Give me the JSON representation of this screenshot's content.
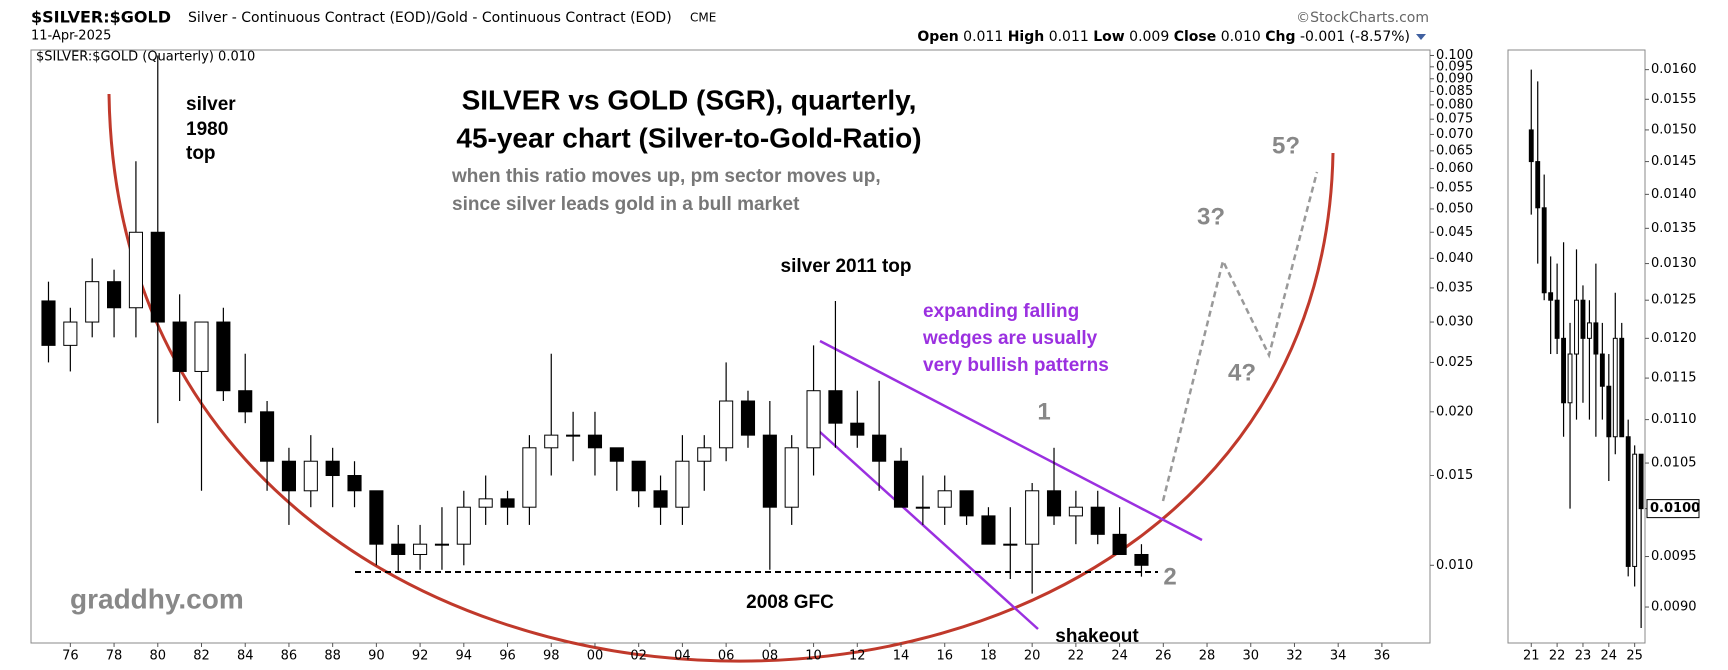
{
  "header": {
    "symbol": "$SILVER:$GOLD",
    "description": "Silver - Continuous Contract (EOD)/Gold - Continuous Contract (EOD)",
    "exchange": "CME",
    "source": "©StockCharts.com",
    "date": "11-Apr-2025",
    "quote": [
      {
        "label": "Open",
        "value": "0.011"
      },
      {
        "label": "High",
        "value": "0.011"
      },
      {
        "label": "Low",
        "value": "0.009"
      },
      {
        "label": "Close",
        "value": "0.010"
      },
      {
        "label": "Chg",
        "value": "-0.001 (-8.57%)"
      }
    ]
  },
  "chart_data": [
    {
      "type": "candlestick",
      "legend_label": "$SILVER:$GOLD (Quarterly) 0.010",
      "title": [
        "SILVER vs GOLD (SGR), quarterly,",
        "45-year chart (Silver-to-Gold-Ratio)"
      ],
      "subtitle": [
        "when this ratio moves up, pm sector moves up,",
        "since silver leads gold in a bull market"
      ],
      "annotations": {
        "silver_1980": [
          "silver",
          "1980",
          "top"
        ],
        "silver_2011": "silver 2011 top",
        "wedge": [
          "expanding falling",
          "wedges are usually",
          "very bullish patterns"
        ],
        "wave1": "1",
        "wave2": "2",
        "wave3": "3?",
        "wave4": "4?",
        "wave5": "5?",
        "site": "graddhy.com",
        "gfc": "2008 GFC",
        "shakeout": "shakeout"
      },
      "log_scale": true,
      "grid": false,
      "up_color": "#ffffff",
      "down_color": "#000000",
      "x": [
        1975,
        1976,
        1977,
        1978,
        1979,
        1980,
        1981,
        1982,
        1983,
        1984,
        1985,
        1986,
        1987,
        1988,
        1989,
        1990,
        1991,
        1992,
        1993,
        1994,
        1995,
        1996,
        1997,
        1998,
        1999,
        2000,
        2001,
        2002,
        2003,
        2004,
        2005,
        2006,
        2007,
        2008,
        2009,
        2010,
        2011,
        2012,
        2013,
        2014,
        2015,
        2016,
        2017,
        2018,
        2019,
        2020,
        2021,
        2022,
        2023,
        2024,
        2025
      ],
      "open": [
        0.033,
        0.027,
        0.03,
        0.036,
        0.032,
        0.045,
        0.03,
        0.024,
        0.03,
        0.022,
        0.02,
        0.016,
        0.014,
        0.016,
        0.015,
        0.014,
        0.011,
        0.0105,
        0.011,
        0.011,
        0.013,
        0.0135,
        0.013,
        0.017,
        0.018,
        0.018,
        0.017,
        0.016,
        0.014,
        0.013,
        0.016,
        0.017,
        0.021,
        0.018,
        0.013,
        0.017,
        0.022,
        0.019,
        0.018,
        0.016,
        0.013,
        0.013,
        0.014,
        0.0125,
        0.011,
        0.011,
        0.014,
        0.0125,
        0.013,
        0.0115,
        0.0105
      ],
      "high": [
        0.036,
        0.032,
        0.04,
        0.038,
        0.062,
        0.1,
        0.034,
        0.03,
        0.032,
        0.026,
        0.021,
        0.017,
        0.018,
        0.017,
        0.016,
        0.014,
        0.012,
        0.012,
        0.013,
        0.014,
        0.015,
        0.014,
        0.018,
        0.026,
        0.02,
        0.02,
        0.017,
        0.016,
        0.015,
        0.018,
        0.018,
        0.025,
        0.022,
        0.021,
        0.018,
        0.027,
        0.033,
        0.022,
        0.023,
        0.017,
        0.015,
        0.015,
        0.014,
        0.013,
        0.013,
        0.0145,
        0.017,
        0.014,
        0.014,
        0.013,
        0.011
      ],
      "low": [
        0.025,
        0.024,
        0.028,
        0.028,
        0.028,
        0.019,
        0.021,
        0.014,
        0.021,
        0.019,
        0.014,
        0.012,
        0.013,
        0.013,
        0.013,
        0.01,
        0.0097,
        0.0098,
        0.0098,
        0.01,
        0.012,
        0.012,
        0.012,
        0.015,
        0.016,
        0.015,
        0.014,
        0.013,
        0.012,
        0.012,
        0.014,
        0.016,
        0.017,
        0.0098,
        0.012,
        0.015,
        0.017,
        0.017,
        0.014,
        0.013,
        0.012,
        0.012,
        0.012,
        0.011,
        0.0094,
        0.0088,
        0.012,
        0.011,
        0.011,
        0.0105,
        0.0095
      ],
      "close": [
        0.027,
        0.03,
        0.036,
        0.032,
        0.045,
        0.03,
        0.024,
        0.03,
        0.022,
        0.02,
        0.016,
        0.014,
        0.016,
        0.015,
        0.014,
        0.011,
        0.0105,
        0.011,
        0.011,
        0.013,
        0.0135,
        0.013,
        0.017,
        0.018,
        0.018,
        0.017,
        0.016,
        0.014,
        0.013,
        0.016,
        0.017,
        0.021,
        0.018,
        0.013,
        0.017,
        0.022,
        0.019,
        0.018,
        0.016,
        0.013,
        0.013,
        0.014,
        0.0125,
        0.011,
        0.011,
        0.014,
        0.0125,
        0.013,
        0.0115,
        0.0105,
        0.01
      ],
      "xlim": [
        1974.2,
        2038.2
      ],
      "xticks": [
        {
          "value": 1976,
          "label": "76"
        },
        {
          "value": 1978,
          "label": "78"
        },
        {
          "value": 1980,
          "label": "80"
        },
        {
          "value": 1982,
          "label": "82"
        },
        {
          "value": 1984,
          "label": "84"
        },
        {
          "value": 1986,
          "label": "86"
        },
        {
          "value": 1988,
          "label": "88"
        },
        {
          "value": 1990,
          "label": "90"
        },
        {
          "value": 1992,
          "label": "92"
        },
        {
          "value": 1994,
          "label": "94"
        },
        {
          "value": 1996,
          "label": "96"
        },
        {
          "value": 1998,
          "label": "98"
        },
        {
          "value": 2000,
          "label": "00"
        },
        {
          "value": 2002,
          "label": "02"
        },
        {
          "value": 2004,
          "label": "04"
        },
        {
          "value": 2006,
          "label": "06"
        },
        {
          "value": 2008,
          "label": "08"
        },
        {
          "value": 2010,
          "label": "10"
        },
        {
          "value": 2012,
          "label": "12"
        },
        {
          "value": 2014,
          "label": "14"
        },
        {
          "value": 2016,
          "label": "16"
        },
        {
          "value": 2018,
          "label": "18"
        },
        {
          "value": 2020,
          "label": "20"
        },
        {
          "value": 2022,
          "label": "22"
        },
        {
          "value": 2024,
          "label": "24"
        },
        {
          "value": 2026,
          "label": "26"
        },
        {
          "value": 2028,
          "label": "28"
        },
        {
          "value": 2030,
          "label": "30"
        },
        {
          "value": 2032,
          "label": "32"
        },
        {
          "value": 2034,
          "label": "34"
        },
        {
          "value": 2036,
          "label": "36"
        }
      ],
      "ylim": [
        0.00704,
        0.1025
      ],
      "yticks": [
        {
          "value": 0.01,
          "label": "0.010"
        },
        {
          "value": 0.015,
          "label": "0.015"
        },
        {
          "value": 0.02,
          "label": "0.020"
        },
        {
          "value": 0.025,
          "label": "0.025"
        },
        {
          "value": 0.03,
          "label": "0.030"
        },
        {
          "value": 0.035,
          "label": "0.035"
        },
        {
          "value": 0.04,
          "label": "0.040"
        },
        {
          "value": 0.045,
          "label": "0.045"
        },
        {
          "value": 0.05,
          "label": "0.050"
        },
        {
          "value": 0.055,
          "label": "0.055"
        },
        {
          "value": 0.06,
          "label": "0.060"
        },
        {
          "value": 0.065,
          "label": "0.065"
        },
        {
          "value": 0.07,
          "label": "0.070"
        },
        {
          "value": 0.075,
          "label": "0.075"
        },
        {
          "value": 0.08,
          "label": "0.080"
        },
        {
          "value": 0.085,
          "label": "0.085"
        },
        {
          "value": 0.09,
          "label": "0.090"
        },
        {
          "value": 0.095,
          "label": "0.095"
        },
        {
          "value": 0.1,
          "label": "0.100"
        }
      ]
    },
    {
      "type": "candlestick",
      "log_scale": true,
      "grid": false,
      "up_color": "#ffffff",
      "down_color": "#000000",
      "x": [
        2021,
        2021.25,
        2021.5,
        2021.75,
        2022,
        2022.25,
        2022.5,
        2022.75,
        2023,
        2023.25,
        2023.5,
        2023.75,
        2024,
        2024.25,
        2024.5,
        2024.75,
        2025,
        2025.25
      ],
      "open": [
        0.015,
        0.0145,
        0.0138,
        0.0126,
        0.0125,
        0.012,
        0.0112,
        0.0118,
        0.0125,
        0.012,
        0.0122,
        0.0118,
        0.0114,
        0.0108,
        0.012,
        0.0108,
        0.0094,
        0.0106
      ],
      "high": [
        0.016,
        0.0158,
        0.0143,
        0.0131,
        0.013,
        0.0133,
        0.0122,
        0.0132,
        0.0127,
        0.0125,
        0.013,
        0.0122,
        0.0118,
        0.0126,
        0.0122,
        0.011,
        0.0107,
        0.0106
      ],
      "low": [
        0.0137,
        0.013,
        0.0125,
        0.0118,
        0.0118,
        0.0108,
        0.01,
        0.011,
        0.0112,
        0.011,
        0.0108,
        0.011,
        0.0103,
        0.0106,
        0.0108,
        0.0093,
        0.0092,
        0.0088
      ],
      "close": [
        0.0145,
        0.0138,
        0.0126,
        0.0125,
        0.012,
        0.0112,
        0.0118,
        0.0125,
        0.012,
        0.0122,
        0.0118,
        0.0114,
        0.0108,
        0.012,
        0.0108,
        0.0094,
        0.0106,
        0.01
      ],
      "last_marker": {
        "value": 0.01,
        "label": "0.0100"
      },
      "xlim": [
        2020.1,
        2025.4
      ],
      "xticks": [
        {
          "value": 2021,
          "label": "21"
        },
        {
          "value": 2022,
          "label": "22"
        },
        {
          "value": 2023,
          "label": "23"
        },
        {
          "value": 2024,
          "label": "24"
        },
        {
          "value": 2025,
          "label": "25"
        }
      ],
      "ylim": [
        0.00866,
        0.01634
      ],
      "yticks": [
        {
          "value": 0.009,
          "label": "0.0090"
        },
        {
          "value": 0.0095,
          "label": "0.0095"
        },
        {
          "value": 0.01,
          "label": "0.0100"
        },
        {
          "value": 0.0105,
          "label": "0.0105"
        },
        {
          "value": 0.011,
          "label": "0.0110"
        },
        {
          "value": 0.0115,
          "label": "0.0115"
        },
        {
          "value": 0.012,
          "label": "0.0120"
        },
        {
          "value": 0.0125,
          "label": "0.0125"
        },
        {
          "value": 0.013,
          "label": "0.0130"
        },
        {
          "value": 0.0135,
          "label": "0.0135"
        },
        {
          "value": 0.014,
          "label": "0.0140"
        },
        {
          "value": 0.0145,
          "label": "0.0145"
        },
        {
          "value": 0.015,
          "label": "0.0150"
        },
        {
          "value": 0.0155,
          "label": "0.0155"
        },
        {
          "value": 0.016,
          "label": "0.0160"
        }
      ]
    }
  ]
}
